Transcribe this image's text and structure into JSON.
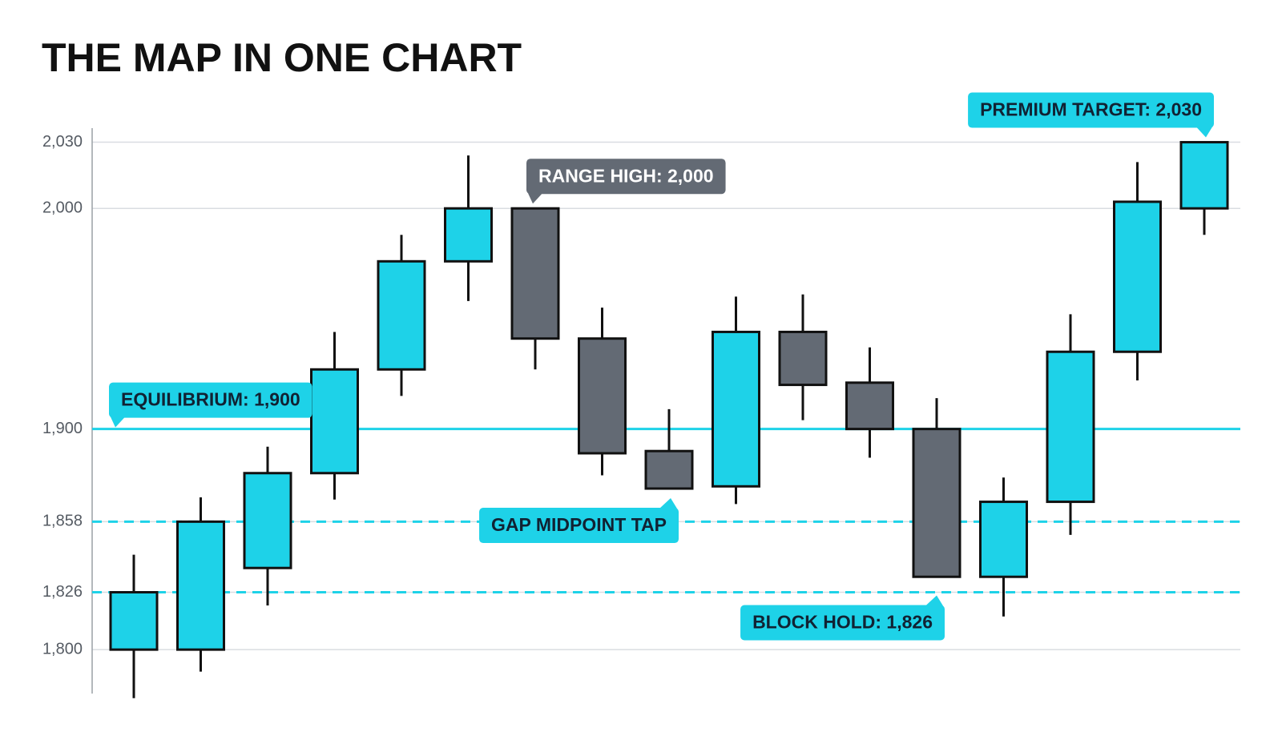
{
  "chart_data": {
    "type": "candlestick",
    "title": "THE MAP IN ONE CHART",
    "up_color": "#1ed2e8",
    "down_color": "#636a74",
    "series": {
      "open": [
        1800,
        1800,
        1837,
        1880,
        1927,
        1976,
        2000,
        1941,
        1890,
        1874,
        1944,
        1921,
        1900,
        1833,
        1867,
        1935,
        2000
      ],
      "high": [
        1843,
        1869,
        1892,
        1944,
        1988,
        2024,
        2000,
        1955,
        1909,
        1960,
        1961,
        1937,
        1914,
        1878,
        1952,
        2021,
        2030
      ],
      "low": [
        1778,
        1790,
        1820,
        1868,
        1915,
        1958,
        1927,
        1879,
        1873,
        1866,
        1904,
        1887,
        1833,
        1815,
        1852,
        1922,
        1988
      ],
      "close": [
        1826,
        1858,
        1880,
        1927,
        1976,
        2000,
        1941,
        1889,
        1873,
        1944,
        1920,
        1900,
        1833,
        1867,
        1935,
        2003,
        2030
      ]
    },
    "ylim": [
      1775,
      2040
    ],
    "yticks": [
      {
        "value": 1800,
        "label": "1,800"
      },
      {
        "value": 1826,
        "label": "1,826"
      },
      {
        "value": 1858,
        "label": "1,858"
      },
      {
        "value": 1900,
        "label": "1,900"
      },
      {
        "value": 2000,
        "label": "2,000"
      },
      {
        "value": 2030,
        "label": "2,030"
      }
    ],
    "grid": true,
    "reference_lines": [
      {
        "value": 1900,
        "style": "solid",
        "color": "#1ed2e8"
      },
      {
        "value": 1858,
        "style": "dashed",
        "color": "#1ed2e8"
      },
      {
        "value": 1826,
        "style": "dashed",
        "color": "#1ed2e8"
      }
    ],
    "annotations": [
      {
        "text": "EQUILIBRIUM: 1,900",
        "color": "#1ed2e8"
      },
      {
        "text": "RANGE HIGH: 2,000",
        "color": "#636a74"
      },
      {
        "text": "PREMIUM TARGET: 2,030",
        "color": "#1ed2e8"
      },
      {
        "text": "GAP MIDPOINT TAP",
        "color": "#1ed2e8"
      },
      {
        "text": "BLOCK HOLD: 1,826",
        "color": "#1ed2e8"
      }
    ]
  }
}
